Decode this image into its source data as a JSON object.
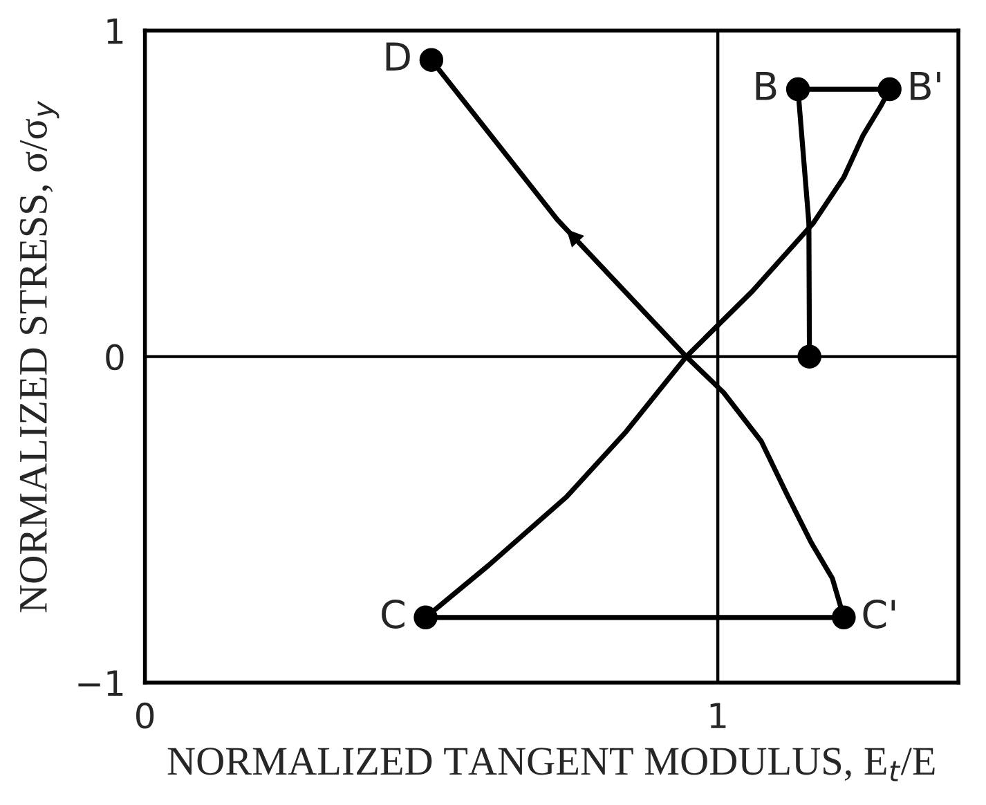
{
  "chart_data": {
    "type": "line",
    "xlabel": "NORMALIZED TANGENT MODULUS, E$_{t}$/E",
    "ylabel": "NORMALIZED STRESS, σ/σ$_{y}$",
    "xlim": [
      0,
      1.42
    ],
    "ylim": [
      -1,
      1
    ],
    "xticks": [
      0,
      1
    ],
    "yticks": [
      -1,
      0,
      1
    ],
    "line_style": "solid",
    "marker": "none",
    "ref_lines": [
      {
        "axis": "x",
        "value": 1,
        "color": "#000000"
      },
      {
        "axis": "y",
        "value": 0,
        "color": "#000000"
      }
    ],
    "series": [
      {
        "color": "#000000",
        "x": [
          0.49,
          0.6,
          0.736,
          0.84,
          0.945,
          1.06,
          1.167,
          1.22,
          1.254,
          1.285,
          1.3
        ],
        "values": [
          -0.8,
          -0.64,
          -0.43,
          -0.23,
          0,
          0.2,
          0.41,
          0.55,
          0.68,
          0.77,
          0.82
        ]
      },
      {
        "color": "#000000",
        "x": [
          1.22,
          1.2,
          1.163,
          1.12,
          1.076,
          1.01,
          0.945,
          0.72,
          0.5
        ],
        "values": [
          -0.8,
          -0.68,
          -0.57,
          -0.42,
          -0.26,
          -0.11,
          0,
          0.42,
          0.91
        ]
      },
      {
        "color": "#000000",
        "x": [
          1.14,
          1.3
        ],
        "values": [
          0.82,
          0.82
        ]
      },
      {
        "color": "#000000",
        "x": [
          1.14,
          1.159,
          1.16
        ],
        "values": [
          0.82,
          0.41,
          0
        ]
      },
      {
        "color": "#000000",
        "x": [
          0.49,
          1.22
        ],
        "values": [
          -0.8,
          -0.8
        ]
      },
      {
        "type": "scatter",
        "marker": "circle",
        "color": "#000000",
        "x": [
          0.5,
          1.14,
          1.3,
          1.16,
          0.49,
          1.22
        ],
        "values": [
          0.91,
          0.82,
          0.82,
          0,
          -0.8,
          -0.8
        ]
      }
    ],
    "annotations": [
      {
        "text": "D",
        "x": 0.5,
        "y": 0.91
      },
      {
        "text": "B",
        "x": 1.14,
        "y": 0.82
      },
      {
        "text": "B'",
        "x": 1.3,
        "y": 0.82
      },
      {
        "text": "C",
        "x": 0.49,
        "y": -0.8
      },
      {
        "text": "C'",
        "x": 1.22,
        "y": -0.8
      }
    ]
  }
}
